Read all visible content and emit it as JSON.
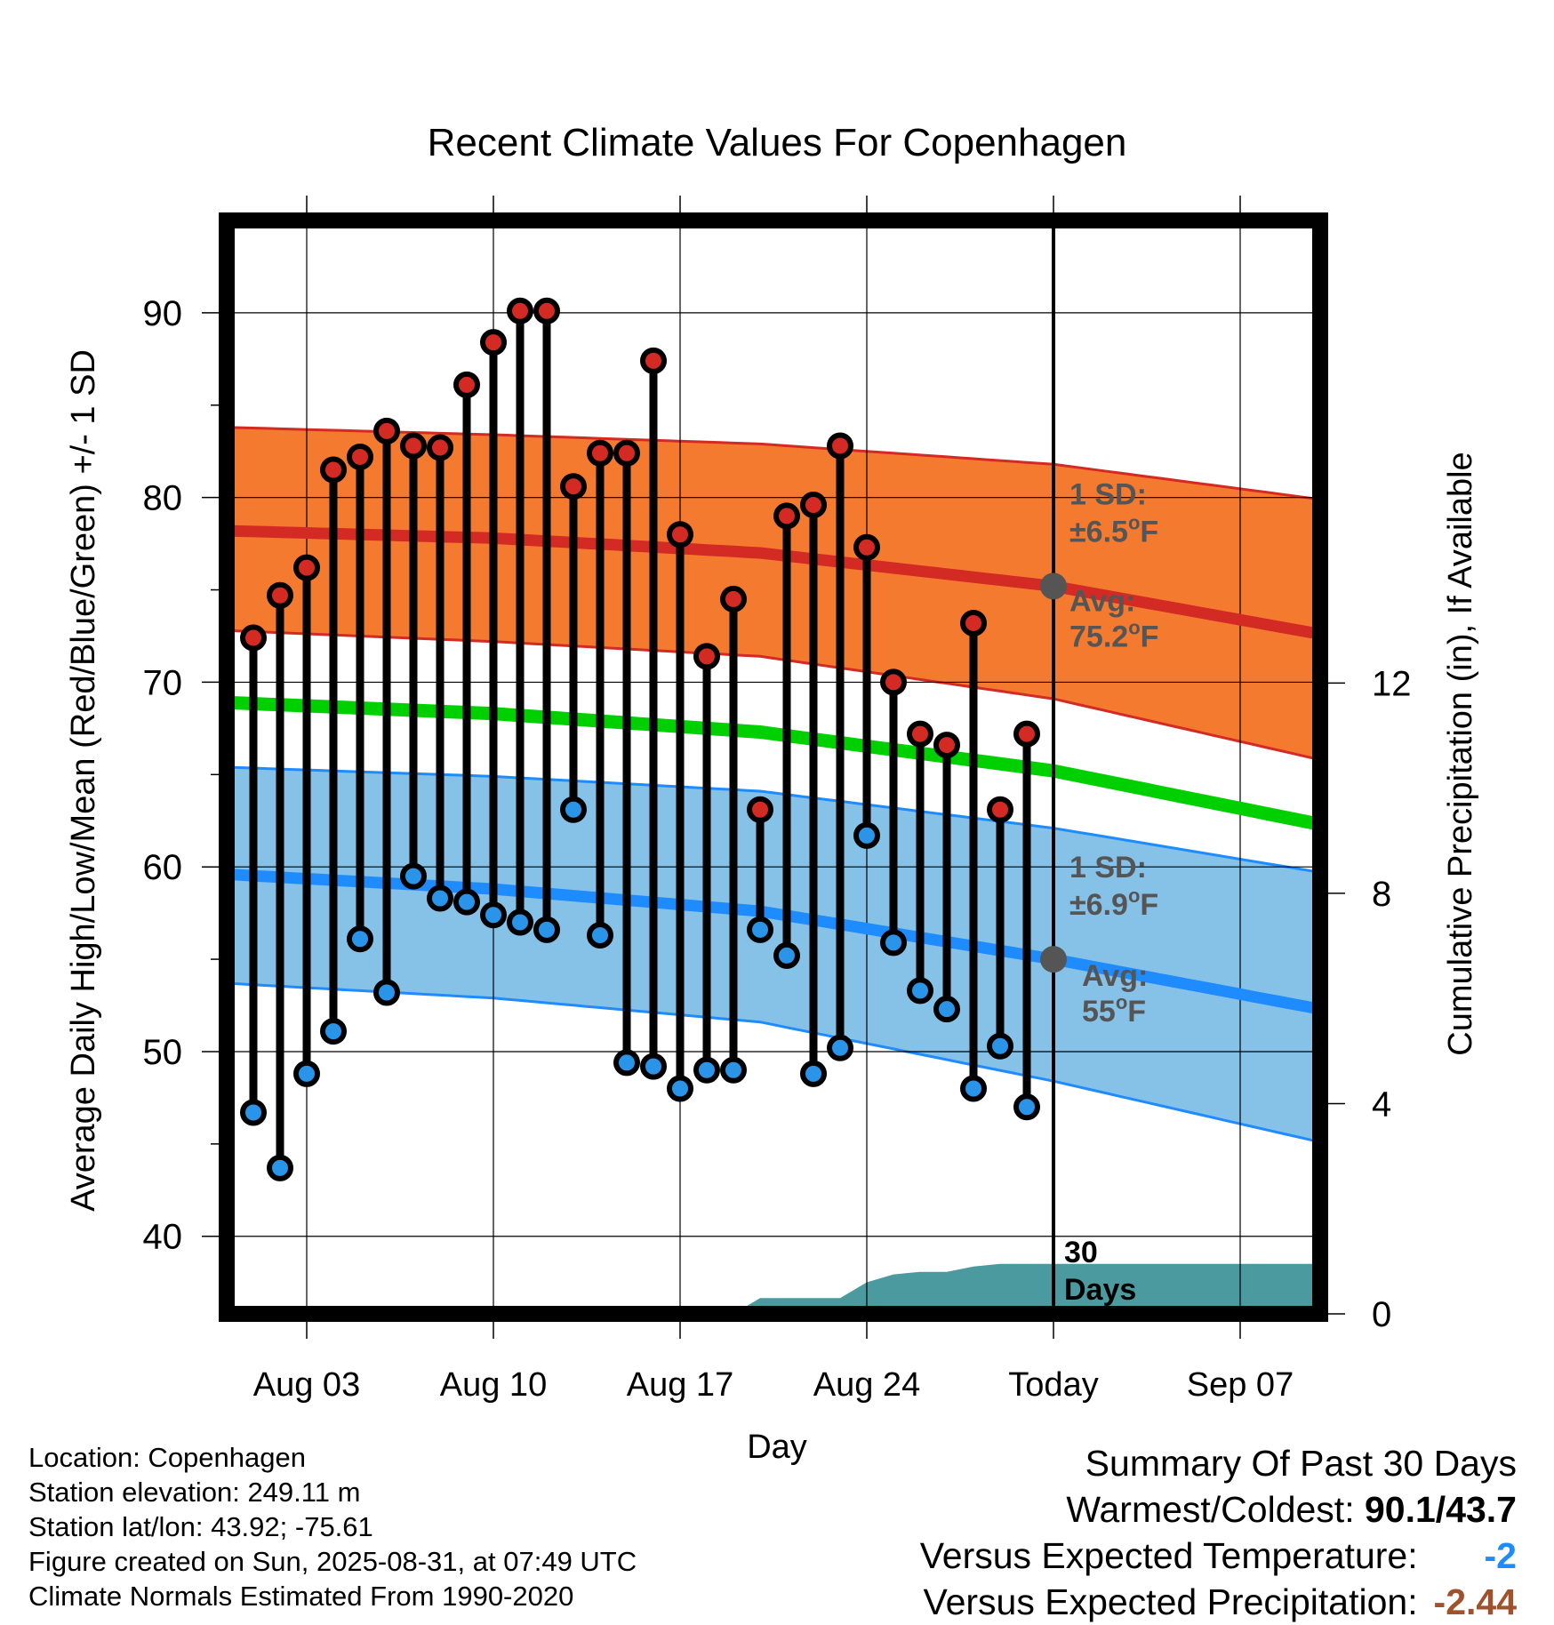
{
  "chart_data": {
    "type": "line",
    "title": "Recent Climate Values For Copenhagen",
    "xlabel": "Day",
    "ylabel": "Average Daily High/Low/Mean (Red/Blue/Green) +/- 1 SD",
    "y2label": "Cumulative Precipitation (in), If Available",
    "ylim": [
      35.8,
      95
    ],
    "y2lim": [
      0,
      20.8
    ],
    "xlim": [
      "2025-07-31",
      "2025-09-10"
    ],
    "x_ticks": [
      "Aug 03",
      "Aug 10",
      "Aug 17",
      "Aug 24",
      "Today",
      "Sep 07"
    ],
    "y_ticks": [
      "40",
      "50",
      "60",
      "70",
      "80",
      "90"
    ],
    "y2_ticks": [
      "0",
      "4",
      "8",
      "12"
    ],
    "grid": true,
    "today": "2025-08-31",
    "today_label": "30 Days",
    "days": [
      "2025-08-01",
      "2025-08-02",
      "2025-08-03",
      "2025-08-04",
      "2025-08-05",
      "2025-08-06",
      "2025-08-07",
      "2025-08-08",
      "2025-08-09",
      "2025-08-10",
      "2025-08-11",
      "2025-08-12",
      "2025-08-13",
      "2025-08-14",
      "2025-08-15",
      "2025-08-16",
      "2025-08-17",
      "2025-08-18",
      "2025-08-19",
      "2025-08-20",
      "2025-08-21",
      "2025-08-22",
      "2025-08-23",
      "2025-08-24",
      "2025-08-25",
      "2025-08-26",
      "2025-08-27",
      "2025-08-28",
      "2025-08-29",
      "2025-08-30"
    ],
    "daily_high": [
      72.4,
      74.7,
      76.2,
      81.5,
      82.2,
      83.6,
      82.8,
      82.7,
      86.1,
      88.4,
      90.1,
      90.1,
      80.6,
      82.4,
      82.4,
      87.4,
      78.0,
      71.4,
      74.5,
      63.1,
      79.0,
      79.6,
      82.8,
      77.3,
      70.0,
      67.2,
      66.6,
      73.2,
      63.1,
      67.2
    ],
    "daily_low": [
      46.7,
      43.7,
      48.8,
      51.1,
      56.1,
      53.2,
      59.5,
      58.3,
      58.1,
      57.4,
      57.0,
      56.6,
      63.1,
      56.3,
      49.4,
      49.2,
      48.0,
      49.0,
      49.0,
      56.6,
      55.2,
      48.8,
      50.2,
      61.7,
      55.9,
      53.3,
      52.3,
      48.0,
      50.3,
      47.0
    ],
    "normals": {
      "x": [
        "2025-07-31",
        "2025-08-10",
        "2025-08-20",
        "2025-08-31",
        "2025-09-10"
      ],
      "high_avg": [
        78.2,
        77.8,
        77.0,
        75.2,
        72.6
      ],
      "high_upper": [
        83.8,
        83.4,
        82.9,
        81.8,
        79.9
      ],
      "high_lower": [
        72.8,
        72.2,
        71.4,
        69.1,
        65.8
      ],
      "mean_avg": [
        68.9,
        68.3,
        67.3,
        65.2,
        62.3
      ],
      "low_avg": [
        59.6,
        58.8,
        57.6,
        55.0,
        52.3
      ],
      "low_upper": [
        65.4,
        64.9,
        64.1,
        62.1,
        59.7
      ],
      "low_lower": [
        53.7,
        52.9,
        51.6,
        48.4,
        45.1
      ]
    },
    "precipitation": {
      "x": [
        "2025-08-18",
        "2025-08-19",
        "2025-08-20",
        "2025-08-21",
        "2025-08-22",
        "2025-08-23",
        "2025-08-24",
        "2025-08-25",
        "2025-08-26",
        "2025-08-27",
        "2025-08-28",
        "2025-08-29",
        "2025-08-30",
        "2025-08-31",
        "2025-09-10"
      ],
      "cumulative_in": [
        0,
        0,
        0.3,
        0.3,
        0.3,
        0.3,
        0.6,
        0.75,
        0.8,
        0.8,
        0.9,
        0.95,
        0.95,
        0.95,
        0.95
      ]
    },
    "annotations": {
      "high_sd": "1 SD:",
      "high_sd_val": "±6.5",
      "high_avg": "Avg:",
      "high_avg_val": "75.2",
      "low_sd": "1 SD:",
      "low_sd_val": "±6.9",
      "low_avg": "Avg:",
      "low_avg_val": "55",
      "degree": "o",
      "unit": "F"
    },
    "colors": {
      "high_band": "#F47A30",
      "high_line": "#D42A24",
      "mean_line": "#00D000",
      "low_band": "#86C2E8",
      "low_line": "#1E8CFF",
      "precip": "#4A9AA0",
      "high_marker": "#D42A24",
      "low_marker": "#2A95E8",
      "today_marker": "#555555"
    }
  },
  "info": {
    "location": "Location: Copenhagen",
    "elevation": "Station elevation: 249.11 m",
    "latlon": "Station lat/lon: 43.92; -75.61",
    "created": "Figure created on Sun, 2025-08-31, at 07:49 UTC",
    "normals_source": "Climate Normals Estimated From 1990-2020"
  },
  "summary": {
    "heading": "Summary Of Past 30 Days",
    "warmest_label": "Warmest/Coldest:",
    "warmest_value": "90.1/43.7",
    "temp_label": "Versus Expected Temperature:",
    "temp_value": "-2",
    "temp_color": "#1E8CFF",
    "precip_label": "Versus Expected Precipitation:",
    "precip_value": "-2.44",
    "precip_color": "#A0522D"
  }
}
